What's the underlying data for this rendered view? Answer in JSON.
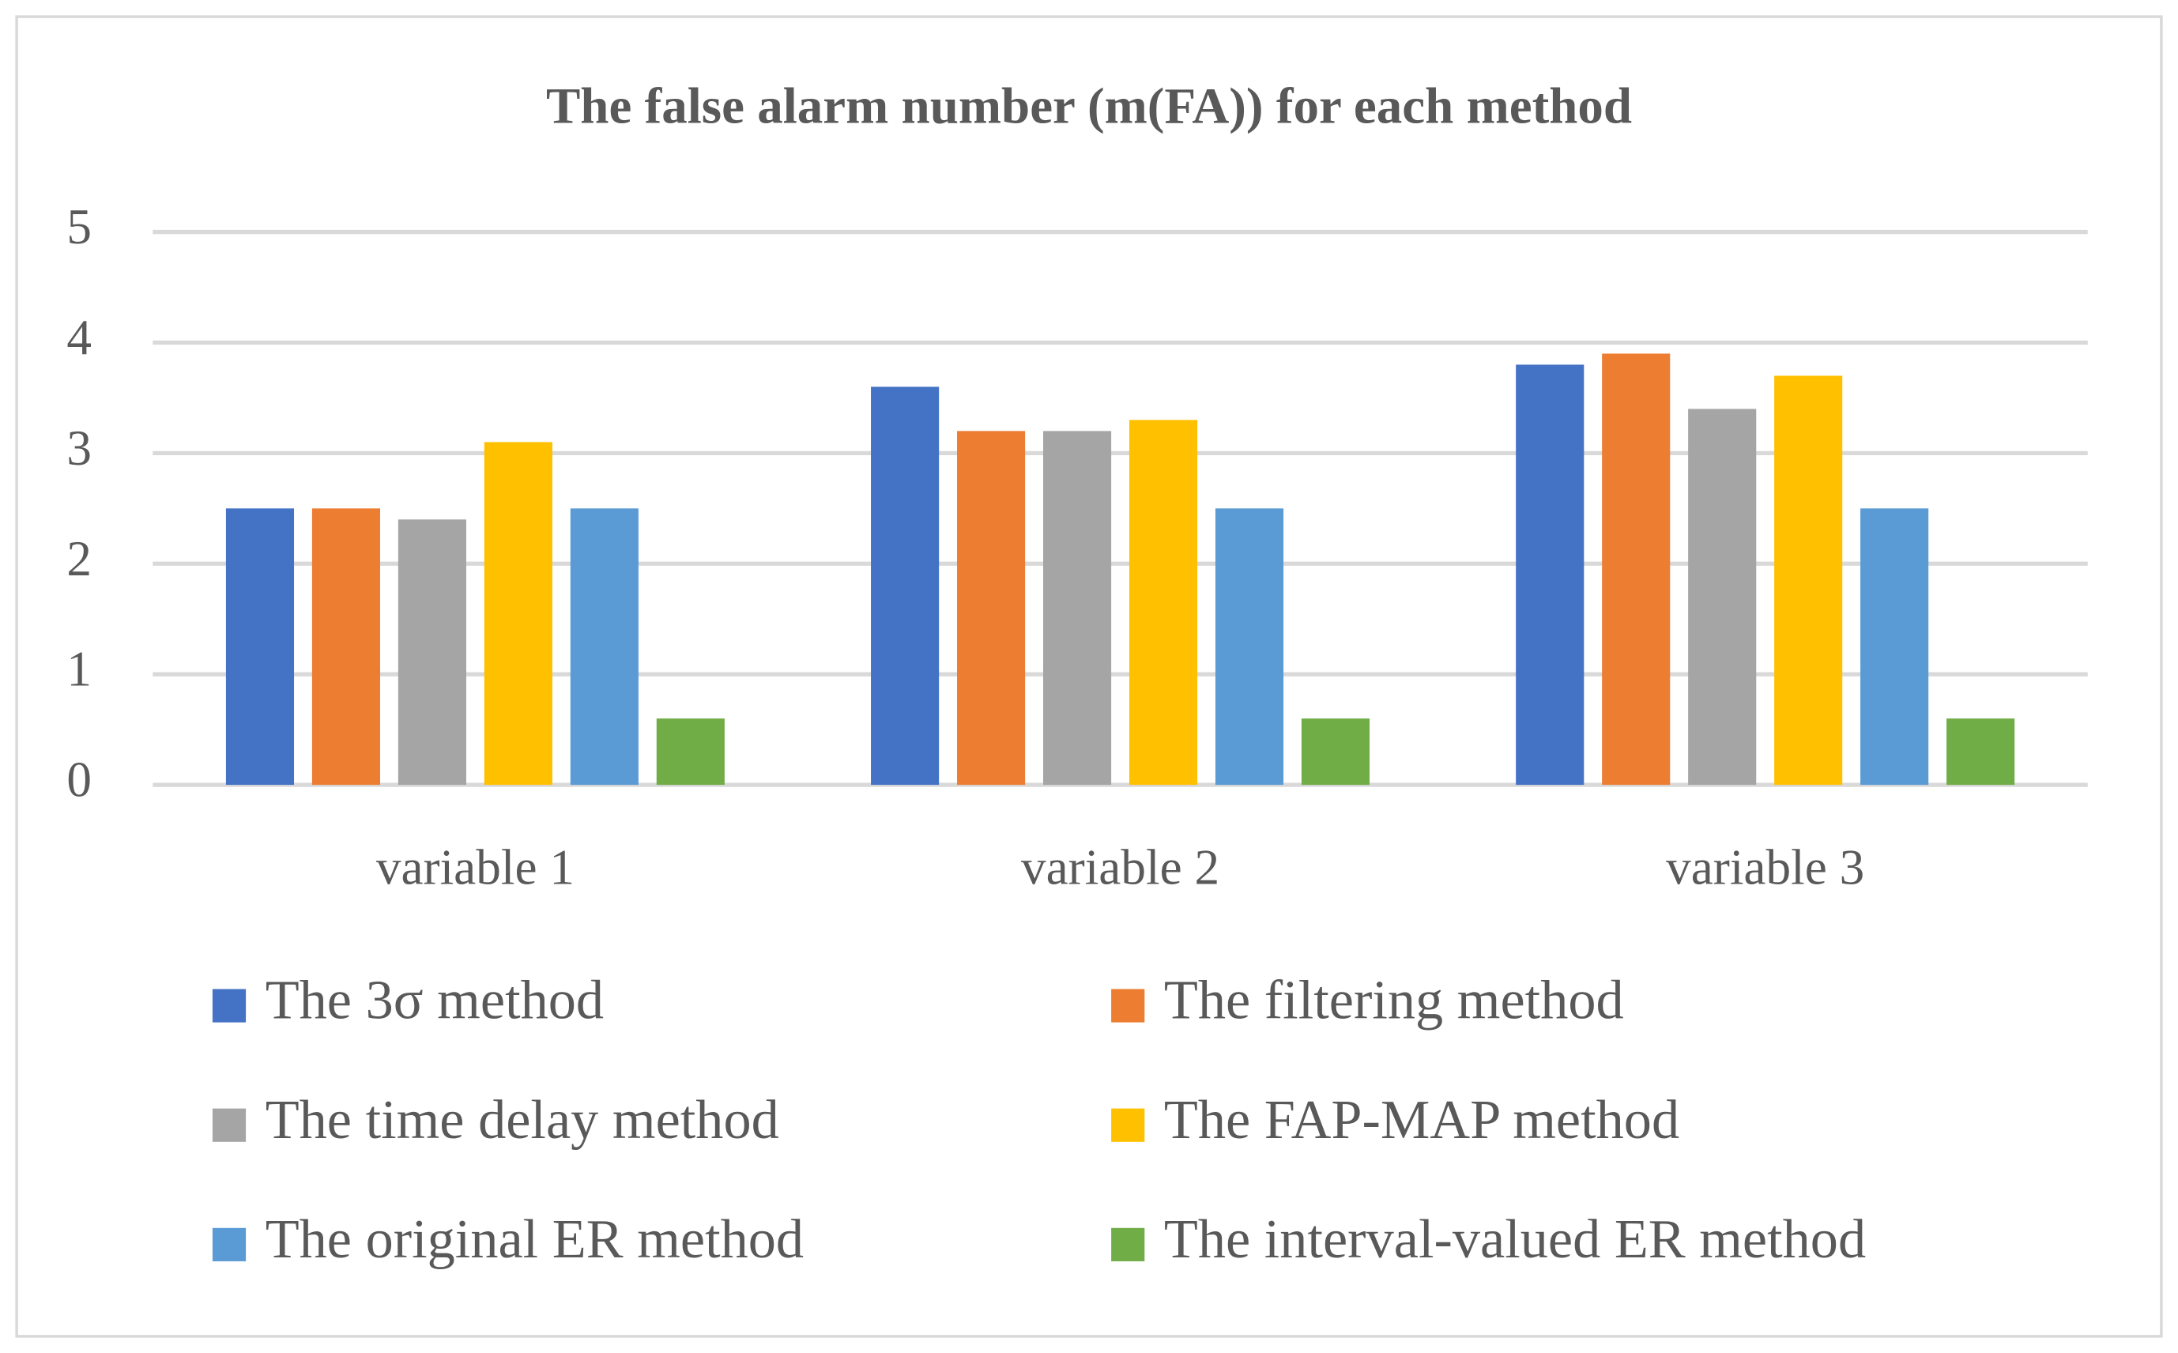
{
  "chart_data": {
    "type": "bar",
    "title": "The false alarm number (m(FA)) for each method",
    "categories": [
      "variable 1",
      "variable 2",
      "variable 3"
    ],
    "series": [
      {
        "name": "The 3σ method",
        "color": "#4472c4",
        "values": [
          2.5,
          3.6,
          3.8
        ]
      },
      {
        "name": "The filtering method",
        "color": "#ed7d31",
        "values": [
          2.5,
          3.2,
          3.9
        ]
      },
      {
        "name": "The time delay method",
        "color": "#a5a5a5",
        "values": [
          2.4,
          3.2,
          3.4
        ]
      },
      {
        "name": "The FAP-MAP method",
        "color": "#ffc000",
        "values": [
          3.1,
          3.3,
          3.7
        ]
      },
      {
        "name": "The original ER method",
        "color": "#5b9bd5",
        "values": [
          2.5,
          2.5,
          2.5
        ]
      },
      {
        "name": "The interval-valued ER method",
        "color": "#70ad47",
        "values": [
          0.6,
          0.6,
          0.6
        ]
      }
    ],
    "ylim": [
      0,
      5
    ],
    "yticks": [
      0,
      1,
      2,
      3,
      4,
      5
    ],
    "grid": true,
    "legend": "bottom"
  }
}
